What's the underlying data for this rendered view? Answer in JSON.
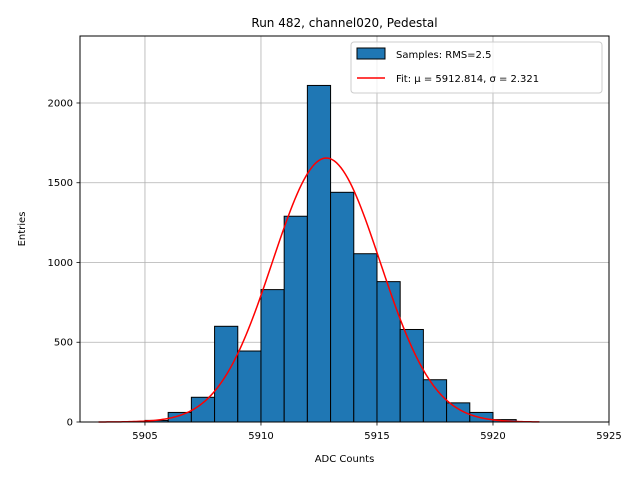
{
  "chart_data": {
    "type": "bar",
    "title": "Run 482, channel020, Pedestal",
    "xlabel": "ADC Counts",
    "ylabel": "Entries",
    "xlim": [
      5902.2,
      5925
    ],
    "ylim": [
      0,
      2420
    ],
    "xticks": [
      5905,
      5910,
      5915,
      5920,
      5925
    ],
    "yticks": [
      0,
      500,
      1000,
      1500,
      2000
    ],
    "grid": true,
    "legend_position": "top-right",
    "histogram": {
      "name": "Samples: RMS=2.5",
      "color": "#1f77b4",
      "bin_width": 1,
      "bin_left_edges": [
        5905,
        5906,
        5907,
        5908,
        5909,
        5910,
        5911,
        5912,
        5913,
        5914,
        5915,
        5916,
        5917,
        5918,
        5919,
        5920
      ],
      "values": [
        10,
        60,
        155,
        600,
        445,
        830,
        1290,
        2110,
        1440,
        1055,
        880,
        580,
        265,
        120,
        60,
        15
      ]
    },
    "fit": {
      "name": "Fit: μ = 5912.814, σ = 2.321",
      "color": "#ff0000",
      "mu": 5912.814,
      "sigma": 2.321,
      "amplitude": 1655,
      "x_range": [
        5903,
        5922
      ]
    }
  }
}
